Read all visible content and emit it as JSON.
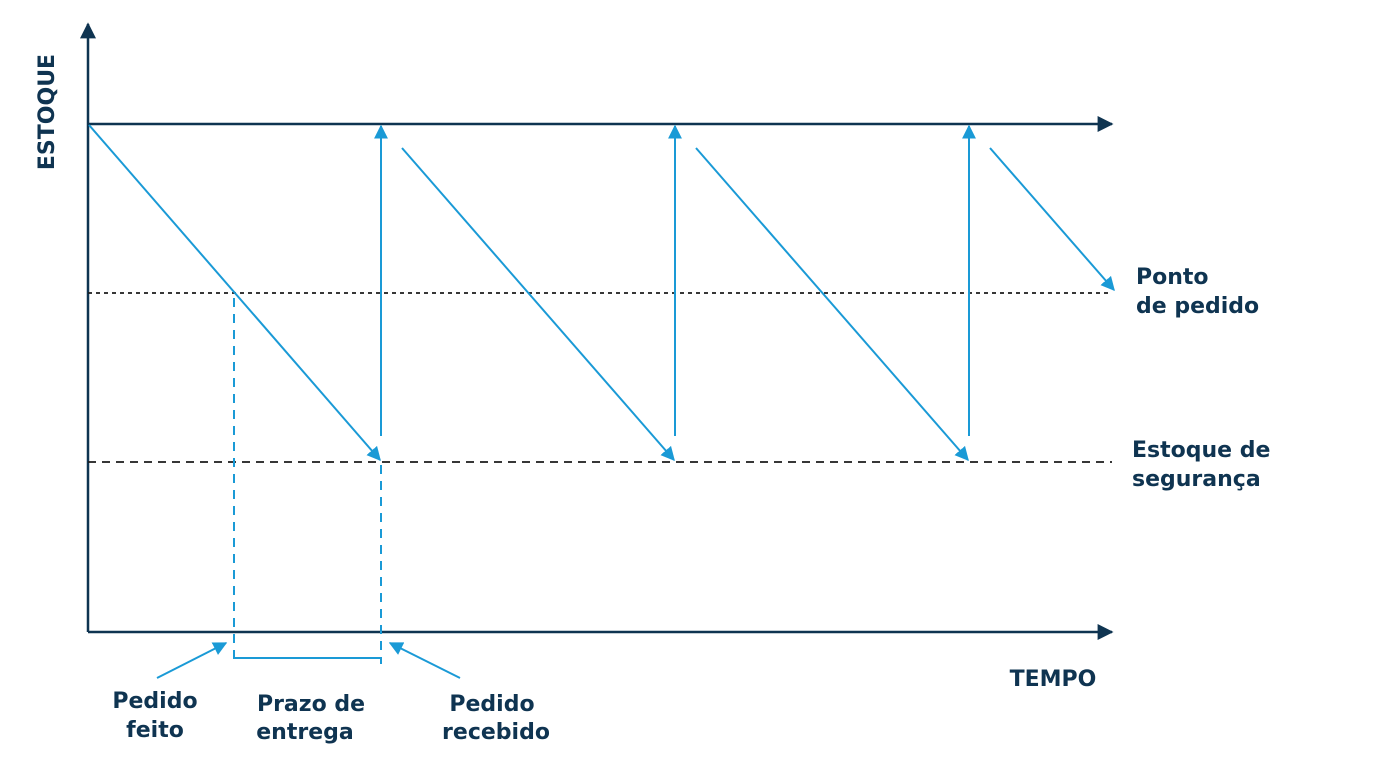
{
  "axes": {
    "y_label": "ESTOQUE",
    "x_label": "TEMPO"
  },
  "levels": {
    "reorder_point": {
      "line1": "Ponto",
      "line2": "de pedido"
    },
    "safety_stock": {
      "line1": "Estoque de",
      "line2": "segurança"
    }
  },
  "annotations": {
    "order_placed": {
      "line1": "Pedido",
      "line2": "feito"
    },
    "lead_time": {
      "line1": "Prazo de",
      "line2": "entrega"
    },
    "order_received": {
      "line1": "Pedido",
      "line2": "recebido"
    }
  },
  "colors": {
    "axis": "#0f3451",
    "stock_line": "#1a9ad6",
    "text": "#0f3451"
  }
}
